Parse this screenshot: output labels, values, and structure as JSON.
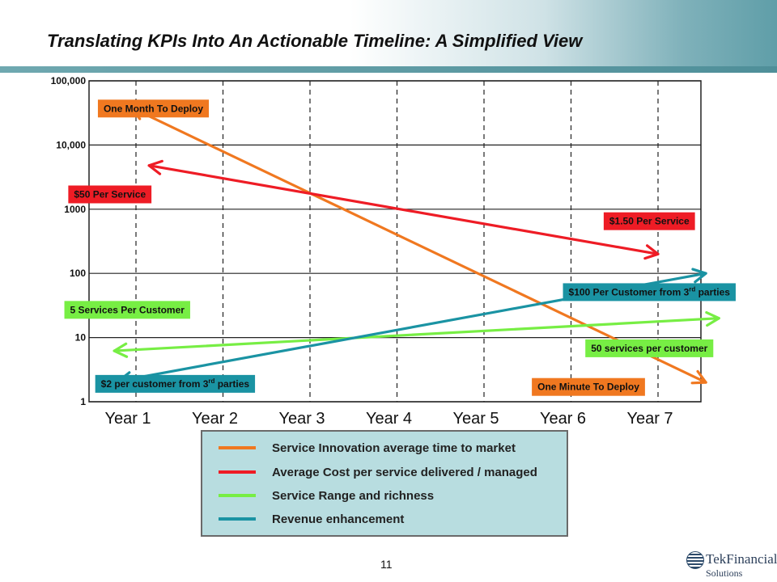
{
  "slide": {
    "title": "Translating KPIs Into An Actionable Timeline: A Simplified View",
    "page_number": "11",
    "logo": {
      "name": "TekFinancial",
      "sub": "Solutions"
    }
  },
  "chart_data": {
    "type": "line",
    "yscale": "log",
    "ylim": [
      1,
      100000
    ],
    "y_ticks": [
      1,
      10,
      100,
      1000,
      10000,
      100000
    ],
    "y_tick_labels": [
      "1",
      "10",
      "100",
      "1000",
      "10,000",
      "100,000"
    ],
    "categories": [
      "Year 1",
      "Year 2",
      "Year 3",
      "Year 4",
      "Year 5",
      "Year 6",
      "Year 7"
    ],
    "grid": true,
    "series": [
      {
        "name": "Service Innovation average time to market",
        "color": "#f07820",
        "points": [
          {
            "x": 0.95,
            "y": 38000
          },
          {
            "x": 7.55,
            "y": 2
          }
        ],
        "labels": [
          {
            "text": "One Month To Deploy",
            "x": 1.2,
            "y": 37000
          },
          {
            "text": "One Minute To Deploy",
            "x": 6.2,
            "y": 1.7
          }
        ]
      },
      {
        "name": "Average Cost per service delivered / managed",
        "color": "#ee1c25",
        "points": [
          {
            "x": 1.15,
            "y": 4800
          },
          {
            "x": 7.0,
            "y": 200
          }
        ],
        "labels": [
          {
            "text": "$50 Per Service",
            "x": 0.7,
            "y": 1700
          },
          {
            "text": "$1.50 Per Service",
            "x": 6.9,
            "y": 650
          }
        ]
      },
      {
        "name": "Service Range and richness",
        "color": "#77ee44",
        "points": [
          {
            "x": 0.75,
            "y": 6.2
          },
          {
            "x": 7.7,
            "y": 20
          }
        ],
        "labels": [
          {
            "text": "5 Services Per Customer",
            "x": 0.9,
            "y": 27
          },
          {
            "text": "50 services per customer",
            "x": 6.9,
            "y": 6.8
          }
        ]
      },
      {
        "name": "Revenue enhancement",
        "color": "#1a93a3",
        "points": [
          {
            "x": 0.8,
            "y": 2.1
          },
          {
            "x": 7.55,
            "y": 100
          }
        ],
        "labels": [
          {
            "text": "$2 per customer from 3rd parties",
            "x": 1.45,
            "y": 1.9
          },
          {
            "text": "$100 Per Customer from 3rd parties",
            "x": 6.9,
            "y": 51
          }
        ]
      }
    ]
  }
}
